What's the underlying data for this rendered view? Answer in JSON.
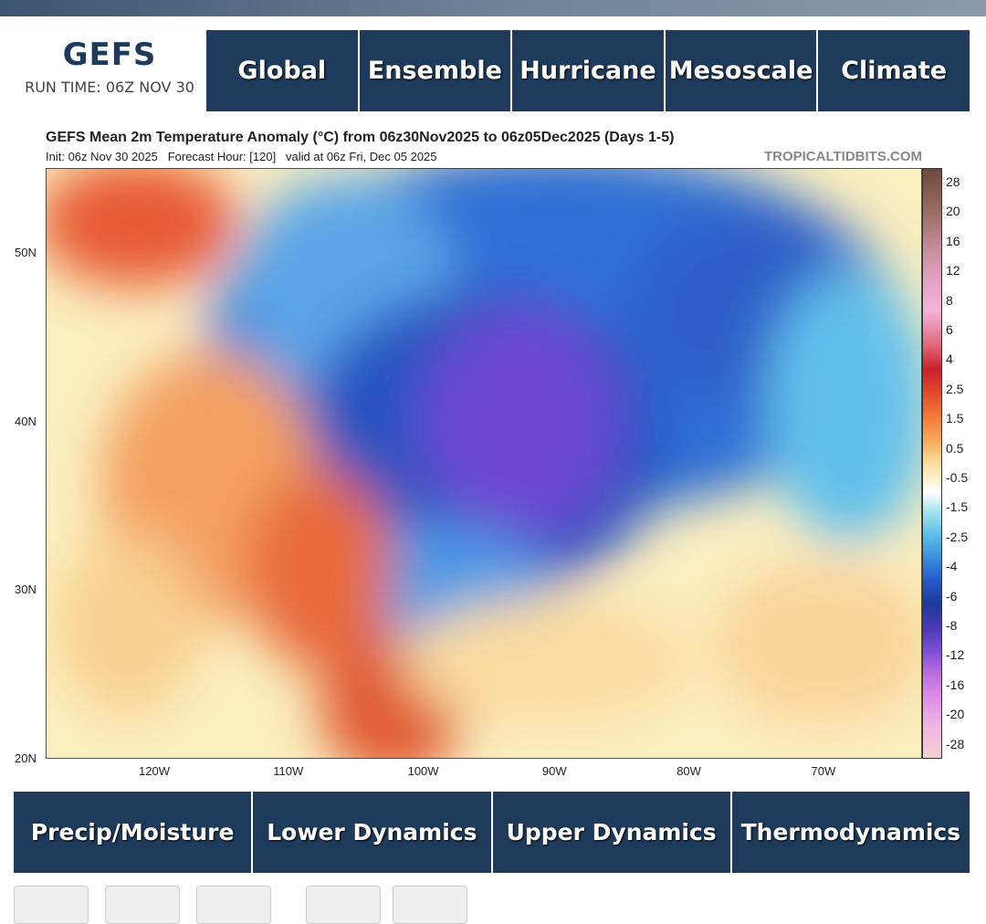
{
  "header": {
    "title": "GEFS",
    "run_time": "RUN TIME: 06Z NOV 30"
  },
  "top_nav": [
    "Global",
    "Ensemble",
    "Hurricane",
    "Mesoscale",
    "Climate"
  ],
  "map": {
    "title": "GEFS Mean 2m Temperature Anomaly (°C) from 06z30Nov2025 to 06z05Dec2025 (Days 1-5)",
    "init": "Init: 06z Nov 30 2025   Forecast Hour: [120]   valid at 06z Fri, Dec 05 2025",
    "credit": "TROPICALTIDBITS.COM",
    "lat_labels": [
      "50N",
      "40N",
      "30N",
      "20N"
    ],
    "lon_labels": [
      "120W",
      "110W",
      "100W",
      "90W",
      "80W",
      "70W"
    ],
    "colorbar_labels": [
      "28",
      "20",
      "16",
      "12",
      "8",
      "6",
      "4",
      "2.5",
      "1.5",
      "0.5",
      "-0.5",
      "-1.5",
      "-2.5",
      "-4",
      "-6",
      "-8",
      "-12",
      "-16",
      "-20",
      "-28"
    ]
  },
  "bottom_nav": [
    "Precip/Moisture",
    "Lower Dynamics",
    "Upper Dynamics",
    "Thermodynamics"
  ]
}
